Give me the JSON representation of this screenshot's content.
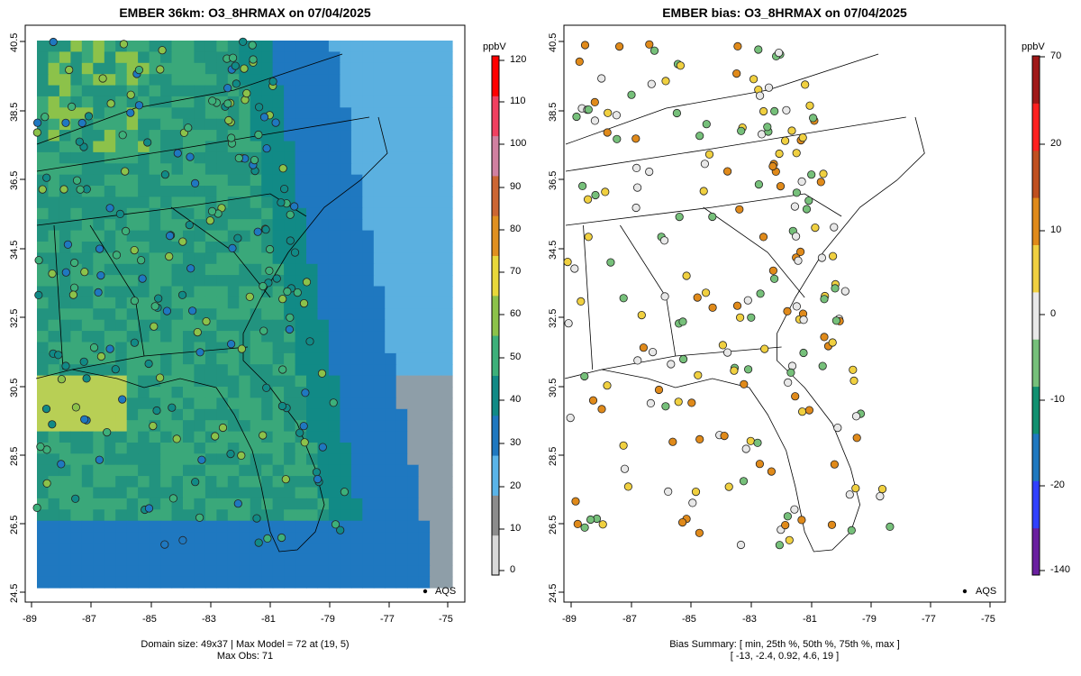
{
  "left_panel": {
    "title": "EMBER 36km: O3_8HRMAX on 07/04/2025",
    "footer_line1": "Domain size: 49x37 | Max Model = 72 at (19, 5)",
    "footer_line2": "Max Obs: 71",
    "legend_label": "AQS",
    "colorbar_unit": "ppbV",
    "colorbar_ticks": [
      "0",
      "10",
      "20",
      "30",
      "40",
      "50",
      "60",
      "70",
      "80",
      "90",
      "100",
      "110",
      "120"
    ]
  },
  "right_panel": {
    "title": "EMBER bias: O3_8HRMAX on 07/04/2025",
    "footer_line1": "Bias Summary: [ min, 25th %, 50th %, 75th %, max ]",
    "footer_line2": "[ -13,   -2.4,   0.92,   4.6,   19 ]",
    "legend_label": "AQS",
    "colorbar_unit": "ppbV",
    "colorbar_ticks": [
      "70",
      "20",
      "10",
      "0",
      "-10",
      "-20",
      "-140"
    ]
  },
  "axes": {
    "x_ticks": [
      "-89",
      "-87",
      "-85",
      "-83",
      "-81",
      "-79",
      "-77",
      "-75"
    ],
    "y_ticks": [
      "24.5",
      "26.5",
      "28.5",
      "30.5",
      "32.5",
      "34.5",
      "36.5",
      "38.5",
      "40.5"
    ]
  },
  "colors": {
    "model_ramp": [
      "#d9d9d9",
      "#8c8c8c",
      "#5ab4e8",
      "#1f78c0",
      "#118a86",
      "#3db07a",
      "#8cc24a",
      "#e8d83a",
      "#e09020",
      "#cc6633",
      "#d080a0",
      "#f04060",
      "#ff0000"
    ],
    "bias_ramp": [
      "#6a1fa0",
      "#3040ff",
      "#1f78c0",
      "#119070",
      "#76c07a",
      "#e8e8e8",
      "#f0d040",
      "#e08a1a",
      "#c05020",
      "#ff2020",
      "#a01818"
    ]
  }
}
